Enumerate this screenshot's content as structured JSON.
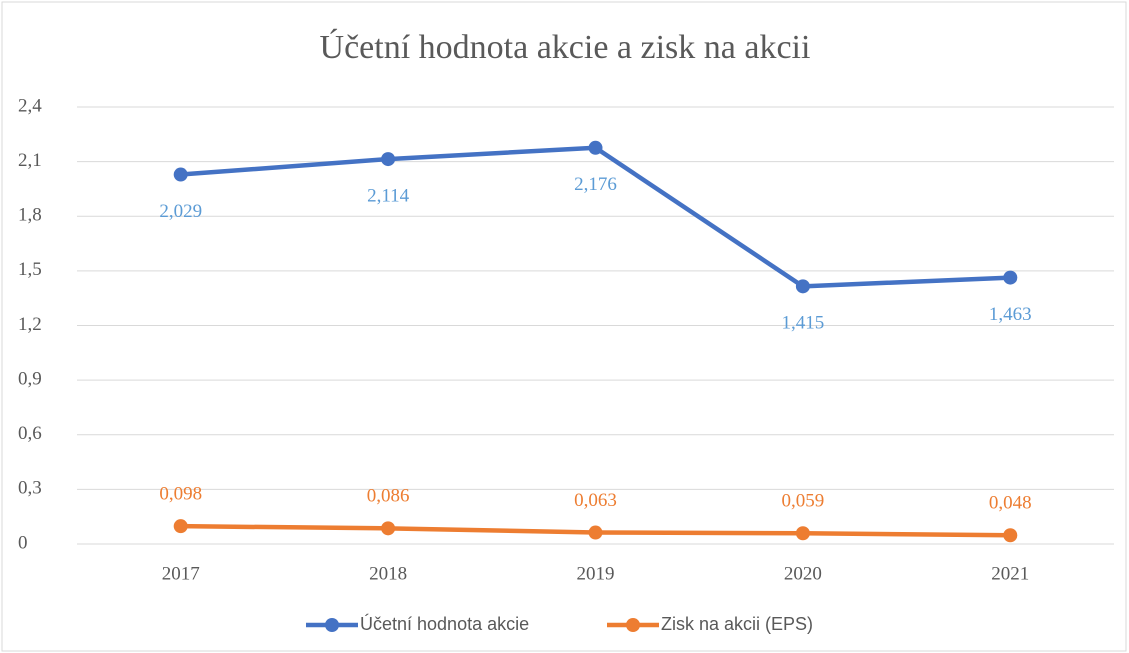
{
  "chart_data": {
    "type": "line",
    "title": "Účetní hodnota akcie a zisk na akcii",
    "categories": [
      "2017",
      "2018",
      "2019",
      "2020",
      "2021"
    ],
    "series": [
      {
        "name": "Účetní hodnota akcie",
        "color": "#4472c4",
        "label_color": "#5b9bd5",
        "values": [
          2.029,
          2.114,
          2.176,
          1.415,
          1.463
        ],
        "value_labels": [
          "2,029",
          "2,114",
          "2,176",
          "1,415",
          "1,463"
        ]
      },
      {
        "name": "Zisk na akcii (EPS)",
        "color": "#ed7d31",
        "label_color": "#ed7d31",
        "values": [
          0.098,
          0.086,
          0.063,
          0.059,
          0.048
        ],
        "value_labels": [
          "0,098",
          "0,086",
          "0,063",
          "0,059",
          "0,048"
        ]
      }
    ],
    "ylim": [
      0,
      2.4
    ],
    "yticks": [
      0,
      {
        "value": 0.3,
        "label": "0,3"
      },
      {
        "value": 0.6,
        "label": "0,6"
      },
      {
        "value": 0.9,
        "label": "0,9"
      },
      {
        "value": 1.2,
        "label": "1,2"
      },
      {
        "value": 1.5,
        "label": "1,5"
      },
      {
        "value": 1.8,
        "label": "1,8"
      },
      {
        "value": 2.1,
        "label": "2,1"
      },
      {
        "value": 2.4,
        "label": "2,4"
      }
    ],
    "grid": true,
    "legend": "bottom"
  }
}
